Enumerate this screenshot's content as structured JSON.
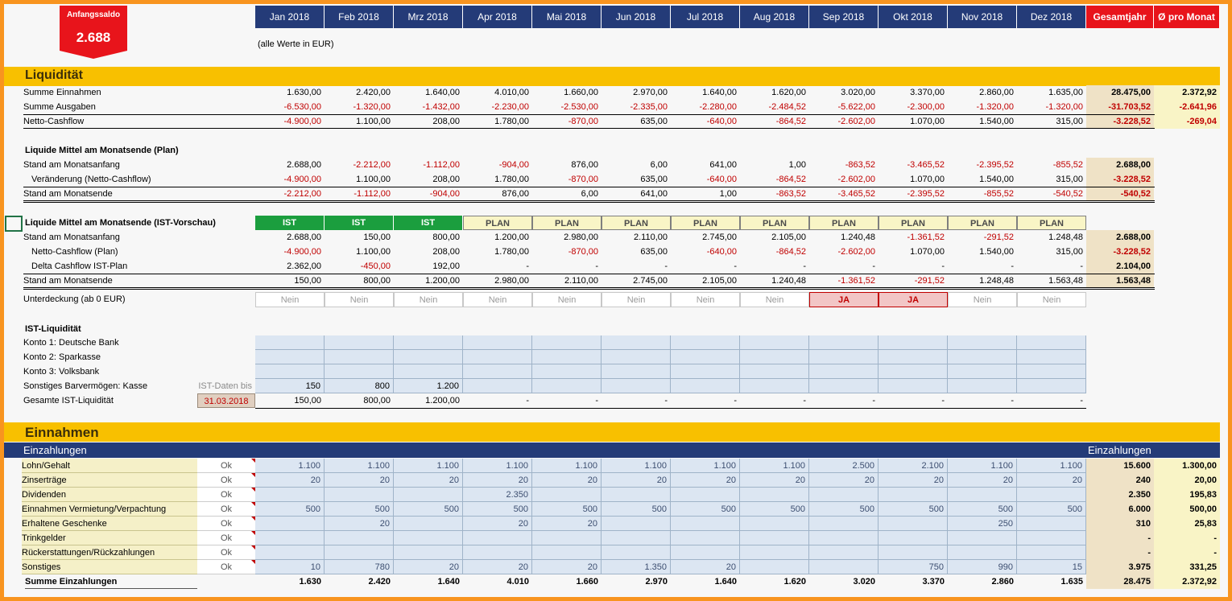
{
  "anfangssaldo": {
    "label": "Anfangssaldo",
    "value": "2.688"
  },
  "months": [
    "Jan 2018",
    "Feb 2018",
    "Mrz 2018",
    "Apr 2018",
    "Mai 2018",
    "Jun 2018",
    "Jul 2018",
    "Aug 2018",
    "Sep 2018",
    "Okt 2018",
    "Nov 2018",
    "Dez 2018"
  ],
  "total_headers": [
    "Gesamtjahr",
    "Ø pro Monat"
  ],
  "note": "(alle Werte in EUR)",
  "liquiditaet": {
    "title": "Liquidität",
    "rows": [
      {
        "label": "Summe Einnahmen",
        "values": [
          "1.630,00",
          "2.420,00",
          "1.640,00",
          "4.010,00",
          "1.660,00",
          "2.970,00",
          "1.640,00",
          "1.620,00",
          "3.020,00",
          "3.370,00",
          "2.860,00",
          "1.635,00"
        ],
        "total": "28.475,00",
        "avg": "2.372,92"
      },
      {
        "label": "Summe Ausgaben",
        "values": [
          "-6.530,00",
          "-1.320,00",
          "-1.432,00",
          "-2.230,00",
          "-2.530,00",
          "-2.335,00",
          "-2.280,00",
          "-2.484,52",
          "-5.622,00",
          "-2.300,00",
          "-1.320,00",
          "-1.320,00"
        ],
        "total": "-31.703,52",
        "avg": "-2.641,96"
      },
      {
        "label": "Netto-Cashflow",
        "values": [
          "-4.900,00",
          "1.100,00",
          "208,00",
          "1.780,00",
          "-870,00",
          "635,00",
          "-640,00",
          "-864,52",
          "-2.602,00",
          "1.070,00",
          "1.540,00",
          "315,00"
        ],
        "total": "-3.228,52",
        "avg": "-269,04"
      }
    ]
  },
  "plan": {
    "title": "Liquide Mittel am Monatsende (Plan)",
    "rows": [
      {
        "label": "Stand am Monatsanfang",
        "values": [
          "2.688,00",
          "-2.212,00",
          "-1.112,00",
          "-904,00",
          "876,00",
          "6,00",
          "641,00",
          "1,00",
          "-863,52",
          "-3.465,52",
          "-2.395,52",
          "-855,52"
        ],
        "total": "2.688,00"
      },
      {
        "label": "Veränderung (Netto-Cashflow)",
        "values": [
          "-4.900,00",
          "1.100,00",
          "208,00",
          "1.780,00",
          "-870,00",
          "635,00",
          "-640,00",
          "-864,52",
          "-2.602,00",
          "1.070,00",
          "1.540,00",
          "315,00"
        ],
        "total": "-3.228,52"
      },
      {
        "label": "Stand am Monatsende",
        "values": [
          "-2.212,00",
          "-1.112,00",
          "-904,00",
          "876,00",
          "6,00",
          "641,00",
          "1,00",
          "-863,52",
          "-3.465,52",
          "-2.395,52",
          "-855,52",
          "-540,52"
        ],
        "total": "-540,52"
      }
    ]
  },
  "ist": {
    "title": "Liquide Mittel am Monatsende (IST-Vorschau)",
    "status": [
      "IST",
      "IST",
      "IST",
      "PLAN",
      "PLAN",
      "PLAN",
      "PLAN",
      "PLAN",
      "PLAN",
      "PLAN",
      "PLAN",
      "PLAN"
    ],
    "rows": [
      {
        "label": "Stand am Monatsanfang",
        "values": [
          "2.688,00",
          "150,00",
          "800,00",
          "1.200,00",
          "2.980,00",
          "2.110,00",
          "2.745,00",
          "2.105,00",
          "1.240,48",
          "-1.361,52",
          "-291,52",
          "1.248,48"
        ],
        "total": "2.688,00"
      },
      {
        "label": "Netto-Cashflow (Plan)",
        "values": [
          "-4.900,00",
          "1.100,00",
          "208,00",
          "1.780,00",
          "-870,00",
          "635,00",
          "-640,00",
          "-864,52",
          "-2.602,00",
          "1.070,00",
          "1.540,00",
          "315,00"
        ],
        "total": "-3.228,52"
      },
      {
        "label": "Delta Cashflow IST-Plan",
        "values": [
          "2.362,00",
          "-450,00",
          "192,00",
          "-",
          "-",
          "-",
          "-",
          "-",
          "-",
          "-",
          "-",
          "-"
        ],
        "total": "2.104,00"
      },
      {
        "label": "Stand am Monatsende",
        "values": [
          "150,00",
          "800,00",
          "1.200,00",
          "2.980,00",
          "2.110,00",
          "2.745,00",
          "2.105,00",
          "1.240,48",
          "-1.361,52",
          "-291,52",
          "1.248,48",
          "1.563,48"
        ],
        "total": "1.563,48"
      }
    ],
    "unterdeckung_label": "Unterdeckung (ab 0  EUR)",
    "unterdeckung": [
      "Nein",
      "Nein",
      "Nein",
      "Nein",
      "Nein",
      "Nein",
      "Nein",
      "Nein",
      "JA",
      "JA",
      "Nein",
      "Nein"
    ]
  },
  "ist_liq": {
    "title": "IST-Liquidität",
    "accounts": [
      "Konto 1: Deutsche Bank",
      "Konto 2: Sparkasse",
      "Konto 3: Volksbank"
    ],
    "kasse_label": "Sonstiges Barvermögen: Kasse",
    "ist_daten_label": "IST-Daten bis",
    "kasse_values": [
      "150",
      "800",
      "1.200",
      "",
      "",
      "",
      "",
      "",
      "",
      "",
      "",
      ""
    ],
    "gesamt_label": "Gesamte IST-Liquidität",
    "date": "31.03.2018",
    "gesamt_values": [
      "150,00",
      "800,00",
      "1.200,00",
      "-",
      "-",
      "-",
      "-",
      "-",
      "-",
      "-",
      "-",
      "-"
    ]
  },
  "einnahmen": {
    "title": "Einnahmen",
    "subheader": "Einzahlungen",
    "right_header": "Einzahlungen",
    "rows": [
      {
        "label": "Lohn/Gehalt",
        "status": "Ok",
        "values": [
          "1.100",
          "1.100",
          "1.100",
          "1.100",
          "1.100",
          "1.100",
          "1.100",
          "1.100",
          "2.500",
          "2.100",
          "1.100",
          "1.100"
        ],
        "total": "15.600",
        "avg": "1.300,00"
      },
      {
        "label": "Zinserträge",
        "status": "Ok",
        "values": [
          "20",
          "20",
          "20",
          "20",
          "20",
          "20",
          "20",
          "20",
          "20",
          "20",
          "20",
          "20"
        ],
        "total": "240",
        "avg": "20,00"
      },
      {
        "label": "Dividenden",
        "status": "Ok",
        "values": [
          "",
          "",
          "",
          "2.350",
          "",
          "",
          "",
          "",
          "",
          "",
          "",
          ""
        ],
        "total": "2.350",
        "avg": "195,83"
      },
      {
        "label": "Einnahmen Vermietung/Verpachtung",
        "status": "Ok",
        "values": [
          "500",
          "500",
          "500",
          "500",
          "500",
          "500",
          "500",
          "500",
          "500",
          "500",
          "500",
          "500"
        ],
        "total": "6.000",
        "avg": "500,00"
      },
      {
        "label": "Erhaltene Geschenke",
        "status": "Ok",
        "values": [
          "",
          "20",
          "",
          "20",
          "20",
          "",
          "",
          "",
          "",
          "",
          "250",
          ""
        ],
        "total": "310",
        "avg": "25,83"
      },
      {
        "label": "Trinkgelder",
        "status": "Ok",
        "values": [
          "",
          "",
          "",
          "",
          "",
          "",
          "",
          "",
          "",
          "",
          "",
          ""
        ],
        "total": "-",
        "avg": "-"
      },
      {
        "label": "Rückerstattungen/Rückzahlungen",
        "status": "Ok",
        "values": [
          "",
          "",
          "",
          "",
          "",
          "",
          "",
          "",
          "",
          "",
          "",
          ""
        ],
        "total": "-",
        "avg": "-"
      },
      {
        "label": "Sonstiges",
        "status": "Ok",
        "values": [
          "10",
          "780",
          "20",
          "20",
          "20",
          "1.350",
          "20",
          "",
          "",
          "750",
          "990",
          "15"
        ],
        "total": "3.975",
        "avg": "331,25"
      }
    ],
    "sum_label": "Summe Einzahlungen",
    "sum_values": [
      "1.630",
      "2.420",
      "1.640",
      "4.010",
      "1.660",
      "2.970",
      "1.640",
      "1.620",
      "3.020",
      "3.370",
      "2.860",
      "1.635"
    ],
    "sum_total": "28.475",
    "sum_avg": "2.372,92"
  }
}
